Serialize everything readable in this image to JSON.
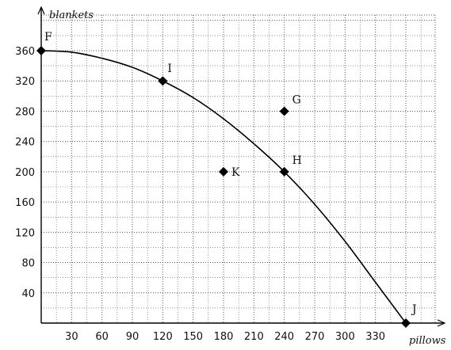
{
  "chart_data": {
    "type": "line",
    "title": "",
    "xlabel": "pillows",
    "ylabel": "blankets",
    "xlim": [
      0,
      360
    ],
    "ylim": [
      0,
      360
    ],
    "xticks": [
      30,
      60,
      90,
      120,
      150,
      180,
      210,
      240,
      270,
      300,
      330
    ],
    "yticks": [
      40,
      80,
      120,
      160,
      200,
      240,
      280,
      320,
      360
    ],
    "grid": true,
    "grid_style": "dotted",
    "minor_grid_step": {
      "x": 15,
      "y": 20
    },
    "curve": {
      "points": [
        {
          "x": 0,
          "y": 360
        },
        {
          "x": 30,
          "y": 358
        },
        {
          "x": 60,
          "y": 350
        },
        {
          "x": 90,
          "y": 338
        },
        {
          "x": 120,
          "y": 320
        },
        {
          "x": 150,
          "y": 298
        },
        {
          "x": 180,
          "y": 270
        },
        {
          "x": 210,
          "y": 237
        },
        {
          "x": 240,
          "y": 200
        },
        {
          "x": 270,
          "y": 157
        },
        {
          "x": 300,
          "y": 108
        },
        {
          "x": 330,
          "y": 54
        },
        {
          "x": 360,
          "y": 0
        }
      ]
    },
    "points": [
      {
        "label": "F",
        "x": 0,
        "y": 360
      },
      {
        "label": "I",
        "x": 120,
        "y": 320
      },
      {
        "label": "G",
        "x": 240,
        "y": 280
      },
      {
        "label": "K",
        "x": 180,
        "y": 200
      },
      {
        "label": "H",
        "x": 240,
        "y": 200
      },
      {
        "label": "J",
        "x": 360,
        "y": 0
      }
    ],
    "colors": {
      "line": "#000000",
      "grid": "#555555",
      "marker": "#000000"
    }
  }
}
